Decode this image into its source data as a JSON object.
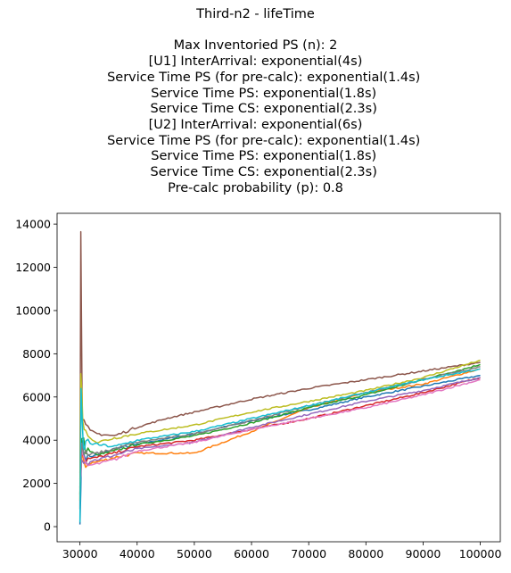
{
  "chart_data": {
    "type": "line",
    "title": "Third-n2 - lifeTime",
    "subtitle_lines": [
      "Max Inventoried PS (n): 2",
      "[U1] InterArrival: exponential(4s)",
      "    Service Time PS (for pre-calc): exponential(1.4s)",
      "    Service Time PS: exponential(1.8s)",
      "    Service Time CS: exponential(2.3s)",
      "[U2] InterArrival: exponential(6s)",
      "    Service Time PS (for pre-calc): exponential(1.4s)",
      "    Service Time PS: exponential(1.8s)",
      "    Service Time CS: exponential(2.3s)",
      "Pre-calc probability (p): 0.8"
    ],
    "xlabel": "",
    "ylabel": "",
    "xlim": [
      26000,
      103500
    ],
    "ylim": [
      -700,
      14500
    ],
    "x_ticks": [
      30000,
      40000,
      50000,
      60000,
      70000,
      80000,
      90000,
      100000
    ],
    "x_tick_labels": [
      "30000",
      "40000",
      "50000",
      "60000",
      "70000",
      "80000",
      "90000",
      "100000"
    ],
    "y_ticks": [
      0,
      2000,
      4000,
      6000,
      8000,
      10000,
      12000,
      14000
    ],
    "y_tick_labels": [
      "0",
      "2000",
      "4000",
      "6000",
      "8000",
      "10000",
      "12000",
      "14000"
    ],
    "grid": false,
    "legend": "none",
    "series": [
      {
        "color": "#1f77b4",
        "x": [
          30000,
          30300,
          31000,
          33000,
          36000,
          40000,
          50000,
          60000,
          70000,
          80000,
          90000,
          100000
        ],
        "y": [
          100,
          3800,
          3200,
          3300,
          3600,
          3800,
          4300,
          4900,
          5400,
          6000,
          6500,
          7000
        ]
      },
      {
        "color": "#ff7f0e",
        "x": [
          30000,
          30300,
          31000,
          33000,
          36000,
          40000,
          50000,
          60000,
          70000,
          80000,
          90000,
          100000
        ],
        "y": [
          2500,
          3200,
          2900,
          3000,
          3200,
          3400,
          3400,
          4400,
          5500,
          6200,
          6600,
          7300
        ]
      },
      {
        "color": "#2ca02c",
        "x": [
          30000,
          30300,
          31000,
          33000,
          36000,
          40000,
          50000,
          60000,
          70000,
          80000,
          90000,
          100000
        ],
        "y": [
          1500,
          4200,
          3600,
          3300,
          3500,
          3800,
          4200,
          4800,
          5500,
          6100,
          6800,
          7500
        ]
      },
      {
        "color": "#d62728",
        "x": [
          30000,
          30300,
          31000,
          33000,
          36000,
          40000,
          50000,
          60000,
          70000,
          80000,
          90000,
          100000
        ],
        "y": [
          3000,
          3500,
          3100,
          3200,
          3400,
          3700,
          4000,
          4500,
          5000,
          5600,
          6200,
          6900
        ]
      },
      {
        "color": "#9467bd",
        "x": [
          30000,
          30300,
          31000,
          33000,
          36000,
          40000,
          50000,
          60000,
          70000,
          80000,
          90000,
          100000
        ],
        "y": [
          2200,
          3300,
          3000,
          3100,
          3300,
          3600,
          3900,
          4600,
          5200,
          5800,
          6300,
          6900
        ]
      },
      {
        "color": "#8c564b",
        "x": [
          30000,
          30150,
          30400,
          31000,
          33000,
          36000,
          40000,
          45000,
          50000,
          60000,
          70000,
          80000,
          90000,
          100000
        ],
        "y": [
          800,
          13800,
          5200,
          4500,
          4300,
          4200,
          4600,
          5000,
          5300,
          5900,
          6400,
          6800,
          7200,
          7600
        ]
      },
      {
        "color": "#e377c2",
        "x": [
          30000,
          30300,
          31000,
          33000,
          36000,
          40000,
          50000,
          60000,
          70000,
          80000,
          90000,
          100000
        ],
        "y": [
          2000,
          3300,
          2800,
          2900,
          3100,
          3500,
          3900,
          4500,
          5000,
          5500,
          6100,
          6800
        ]
      },
      {
        "color": "#7f7f7f",
        "x": [
          30000,
          30300,
          31000,
          33000,
          36000,
          40000,
          50000,
          60000,
          70000,
          80000,
          90000,
          100000
        ],
        "y": [
          1800,
          3700,
          3300,
          3400,
          3600,
          3900,
          4300,
          4900,
          5600,
          6200,
          6800,
          7400
        ]
      },
      {
        "color": "#bcbd22",
        "x": [
          30000,
          30150,
          30500,
          31000,
          33000,
          36000,
          40000,
          50000,
          60000,
          70000,
          80000,
          90000,
          100000
        ],
        "y": [
          1200,
          7300,
          5000,
          4300,
          3900,
          4100,
          4300,
          4700,
          5300,
          5800,
          6300,
          6900,
          7700
        ]
      },
      {
        "color": "#17becf",
        "x": [
          30000,
          30200,
          30600,
          31000,
          33000,
          36000,
          40000,
          50000,
          60000,
          70000,
          80000,
          90000,
          100000
        ],
        "y": [
          200,
          6200,
          3500,
          3900,
          3800,
          3700,
          4000,
          4400,
          5000,
          5600,
          6200,
          6800,
          7300
        ]
      }
    ]
  }
}
